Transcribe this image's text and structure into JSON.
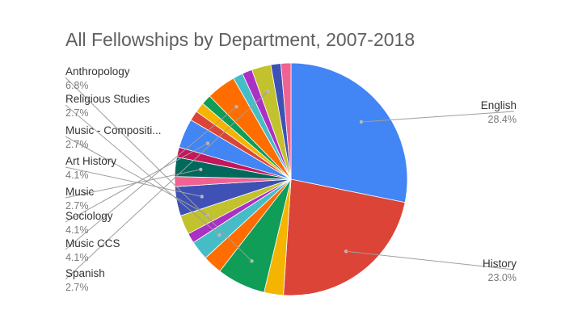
{
  "chart_data": {
    "type": "pie",
    "title": "All Fellowships by Department, 2007-2018",
    "slices": [
      {
        "label": "English",
        "percent": 28.4,
        "color": "#4285f4",
        "value_label": "28.4%",
        "labeled": true
      },
      {
        "label": "History",
        "percent": 23.0,
        "color": "#db4437",
        "value_label": "23.0%",
        "labeled": true
      },
      {
        "label": "",
        "percent": 2.7,
        "color": "#f4b400",
        "labeled": false
      },
      {
        "label": "Anthropology",
        "percent": 6.8,
        "color": "#0f9d58",
        "value_label": "6.8%",
        "labeled": true
      },
      {
        "label": "",
        "percent": 2.7,
        "color": "#ff6d01",
        "labeled": false
      },
      {
        "label": "Religious Studies",
        "percent": 2.7,
        "color": "#46bdc6",
        "value_label": "2.7%",
        "labeled": true
      },
      {
        "label": "",
        "percent": 1.4,
        "color": "#ab30c4",
        "labeled": false
      },
      {
        "label": "Music - Compositi...",
        "percent": 2.7,
        "color": "#c2c12e",
        "value_label": "2.7%",
        "labeled": true
      },
      {
        "label": "Art History",
        "percent": 4.1,
        "color": "#3f51b5",
        "value_label": "4.1%",
        "labeled": true
      },
      {
        "label": "",
        "percent": 1.4,
        "color": "#f06292",
        "labeled": false
      },
      {
        "label": "Music",
        "percent": 2.7,
        "color": "#00695c",
        "value_label": "2.7%",
        "labeled": true
      },
      {
        "label": "",
        "percent": 1.4,
        "color": "#c2185b",
        "labeled": false
      },
      {
        "label": "Sociology",
        "percent": 4.1,
        "color": "#4285f4",
        "value_label": "4.1%",
        "labeled": true
      },
      {
        "label": "",
        "percent": 1.4,
        "color": "#db4437",
        "labeled": false
      },
      {
        "label": "",
        "percent": 1.4,
        "color": "#f4b400",
        "labeled": false
      },
      {
        "label": "",
        "percent": 1.4,
        "color": "#0f9d58",
        "labeled": false
      },
      {
        "label": "Music CCS",
        "percent": 4.1,
        "color": "#ff6d01",
        "value_label": "4.1%",
        "labeled": true
      },
      {
        "label": "",
        "percent": 1.4,
        "color": "#46bdc6",
        "labeled": false
      },
      {
        "label": "",
        "percent": 1.4,
        "color": "#ab30c4",
        "labeled": false
      },
      {
        "label": "Spanish",
        "percent": 2.7,
        "color": "#c2c12e",
        "value_label": "2.7%",
        "labeled": true
      },
      {
        "label": "",
        "percent": 1.4,
        "color": "#3f51b5",
        "labeled": false
      },
      {
        "label": "",
        "percent": 1.4,
        "color": "#f06292",
        "labeled": false
      }
    ]
  }
}
